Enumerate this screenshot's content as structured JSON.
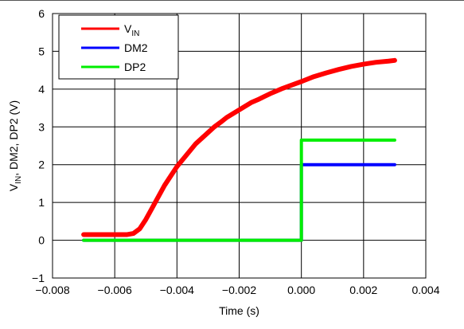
{
  "chart_data": {
    "type": "line",
    "title": "",
    "xlabel": "Time (s)",
    "ylabel": {
      "parts": [
        "V",
        "IN",
        ", DM2, DP2 (V)"
      ]
    },
    "xlim": [
      -0.008,
      0.004
    ],
    "ylim": [
      -1,
      6
    ],
    "xticks": [
      -0.008,
      -0.006,
      -0.004,
      -0.002,
      0.0,
      0.002,
      0.004
    ],
    "xtick_labels": [
      "−0.008",
      "−0.006",
      "−0.004",
      "−0.002",
      "0.000",
      "0.002",
      "0.004"
    ],
    "yticks": [
      -1,
      0,
      1,
      2,
      3,
      4,
      5,
      6
    ],
    "ytick_labels": [
      "−1",
      "0",
      "1",
      "2",
      "3",
      "4",
      "5",
      "6"
    ],
    "grid": true,
    "legend_position": "top-left",
    "series": [
      {
        "name": "V",
        "name_sub": "IN",
        "color": "#ff0000",
        "x": [
          -0.007,
          -0.0062,
          -0.0056,
          -0.0054,
          -0.0052,
          -0.005,
          -0.0048,
          -0.0046,
          -0.0044,
          -0.0042,
          -0.004,
          -0.0038,
          -0.0036,
          -0.0034,
          -0.0032,
          -0.003,
          -0.0028,
          -0.0026,
          -0.0024,
          -0.0022,
          -0.002,
          -0.0018,
          -0.0016,
          -0.0014,
          -0.0012,
          -0.001,
          -0.0008,
          -0.0006,
          -0.0004,
          -0.0002,
          0.0,
          0.0004,
          0.0008,
          0.0012,
          0.0016,
          0.002,
          0.0024,
          0.0028,
          0.003
        ],
        "values": [
          0.15,
          0.15,
          0.15,
          0.18,
          0.3,
          0.55,
          0.85,
          1.15,
          1.45,
          1.7,
          1.95,
          2.15,
          2.35,
          2.55,
          2.7,
          2.85,
          3.0,
          3.12,
          3.25,
          3.35,
          3.45,
          3.55,
          3.65,
          3.72,
          3.8,
          3.88,
          3.95,
          4.02,
          4.08,
          4.14,
          4.2,
          4.33,
          4.43,
          4.52,
          4.6,
          4.66,
          4.71,
          4.74,
          4.76
        ]
      },
      {
        "name": "DM2",
        "color": "#0000ff",
        "x": [
          -0.007,
          -0.001,
          -0.0001,
          0.0,
          0.0,
          0.001,
          0.002,
          0.003
        ],
        "values": [
          0.0,
          0.0,
          0.0,
          0.0,
          2.0,
          2.0,
          2.0,
          2.0
        ]
      },
      {
        "name": "DP2",
        "color": "#00ee00",
        "x": [
          -0.007,
          -0.001,
          -0.0001,
          0.0,
          0.0,
          0.001,
          0.002,
          0.003
        ],
        "values": [
          0.0,
          0.0,
          0.0,
          0.0,
          2.65,
          2.65,
          2.65,
          2.65
        ]
      }
    ]
  }
}
